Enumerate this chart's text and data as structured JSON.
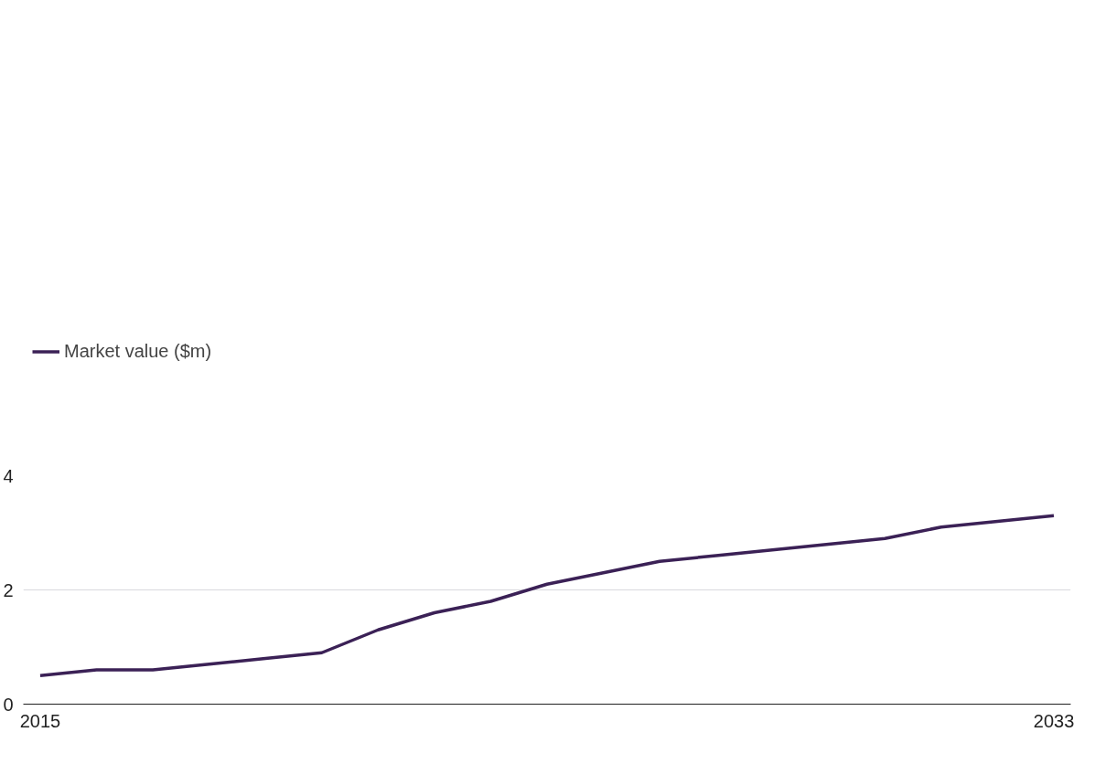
{
  "chart_data": {
    "type": "line",
    "x": [
      2015,
      2016,
      2017,
      2018,
      2019,
      2020,
      2021,
      2022,
      2023,
      2024,
      2025,
      2026,
      2027,
      2028,
      2029,
      2030,
      2031,
      2032,
      2033
    ],
    "series": [
      {
        "name": "Market value ($m)",
        "color": "#3b2156",
        "values": [
          0.5,
          0.6,
          0.6,
          0.7,
          0.8,
          0.9,
          1.3,
          1.6,
          1.8,
          2.1,
          2.3,
          2.5,
          2.6,
          2.7,
          2.8,
          2.9,
          3.1,
          3.2,
          3.3
        ]
      }
    ],
    "xlim": [
      2014.7,
      2033.3
    ],
    "xticks": [
      2015,
      2033
    ],
    "ylim": [
      0,
      4
    ],
    "yticks": [
      0,
      2,
      4
    ],
    "grid": "y",
    "legend": "top left",
    "marker": "none",
    "line_style": "solid"
  }
}
